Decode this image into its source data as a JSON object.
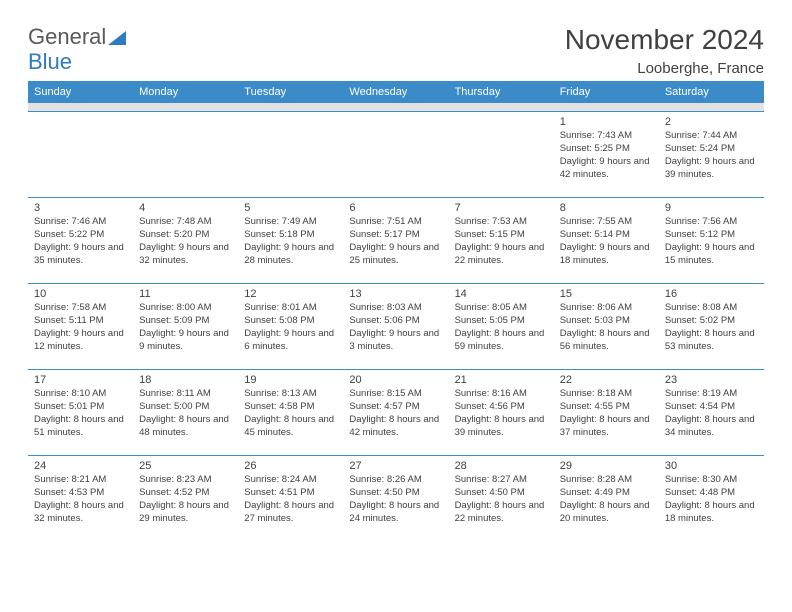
{
  "brand": {
    "part1": "General",
    "part2": "Blue"
  },
  "title": "November 2024",
  "location": "Looberghe, France",
  "colors": {
    "header_bg": "#3b8bc9",
    "header_fg": "#ffffff",
    "spacer_bg": "#e2e2e2",
    "text": "#404040",
    "brand_gray": "#595959",
    "brand_blue": "#2f7bbf"
  },
  "weekdays": [
    "Sunday",
    "Monday",
    "Tuesday",
    "Wednesday",
    "Thursday",
    "Friday",
    "Saturday"
  ],
  "weeks": [
    [
      null,
      null,
      null,
      null,
      null,
      {
        "n": "1",
        "sr": "7:43 AM",
        "ss": "5:25 PM",
        "dl": "9 hours and 42 minutes."
      },
      {
        "n": "2",
        "sr": "7:44 AM",
        "ss": "5:24 PM",
        "dl": "9 hours and 39 minutes."
      }
    ],
    [
      {
        "n": "3",
        "sr": "7:46 AM",
        "ss": "5:22 PM",
        "dl": "9 hours and 35 minutes."
      },
      {
        "n": "4",
        "sr": "7:48 AM",
        "ss": "5:20 PM",
        "dl": "9 hours and 32 minutes."
      },
      {
        "n": "5",
        "sr": "7:49 AM",
        "ss": "5:18 PM",
        "dl": "9 hours and 28 minutes."
      },
      {
        "n": "6",
        "sr": "7:51 AM",
        "ss": "5:17 PM",
        "dl": "9 hours and 25 minutes."
      },
      {
        "n": "7",
        "sr": "7:53 AM",
        "ss": "5:15 PM",
        "dl": "9 hours and 22 minutes."
      },
      {
        "n": "8",
        "sr": "7:55 AM",
        "ss": "5:14 PM",
        "dl": "9 hours and 18 minutes."
      },
      {
        "n": "9",
        "sr": "7:56 AM",
        "ss": "5:12 PM",
        "dl": "9 hours and 15 minutes."
      }
    ],
    [
      {
        "n": "10",
        "sr": "7:58 AM",
        "ss": "5:11 PM",
        "dl": "9 hours and 12 minutes."
      },
      {
        "n": "11",
        "sr": "8:00 AM",
        "ss": "5:09 PM",
        "dl": "9 hours and 9 minutes."
      },
      {
        "n": "12",
        "sr": "8:01 AM",
        "ss": "5:08 PM",
        "dl": "9 hours and 6 minutes."
      },
      {
        "n": "13",
        "sr": "8:03 AM",
        "ss": "5:06 PM",
        "dl": "9 hours and 3 minutes."
      },
      {
        "n": "14",
        "sr": "8:05 AM",
        "ss": "5:05 PM",
        "dl": "8 hours and 59 minutes."
      },
      {
        "n": "15",
        "sr": "8:06 AM",
        "ss": "5:03 PM",
        "dl": "8 hours and 56 minutes."
      },
      {
        "n": "16",
        "sr": "8:08 AM",
        "ss": "5:02 PM",
        "dl": "8 hours and 53 minutes."
      }
    ],
    [
      {
        "n": "17",
        "sr": "8:10 AM",
        "ss": "5:01 PM",
        "dl": "8 hours and 51 minutes."
      },
      {
        "n": "18",
        "sr": "8:11 AM",
        "ss": "5:00 PM",
        "dl": "8 hours and 48 minutes."
      },
      {
        "n": "19",
        "sr": "8:13 AM",
        "ss": "4:58 PM",
        "dl": "8 hours and 45 minutes."
      },
      {
        "n": "20",
        "sr": "8:15 AM",
        "ss": "4:57 PM",
        "dl": "8 hours and 42 minutes."
      },
      {
        "n": "21",
        "sr": "8:16 AM",
        "ss": "4:56 PM",
        "dl": "8 hours and 39 minutes."
      },
      {
        "n": "22",
        "sr": "8:18 AM",
        "ss": "4:55 PM",
        "dl": "8 hours and 37 minutes."
      },
      {
        "n": "23",
        "sr": "8:19 AM",
        "ss": "4:54 PM",
        "dl": "8 hours and 34 minutes."
      }
    ],
    [
      {
        "n": "24",
        "sr": "8:21 AM",
        "ss": "4:53 PM",
        "dl": "8 hours and 32 minutes."
      },
      {
        "n": "25",
        "sr": "8:23 AM",
        "ss": "4:52 PM",
        "dl": "8 hours and 29 minutes."
      },
      {
        "n": "26",
        "sr": "8:24 AM",
        "ss": "4:51 PM",
        "dl": "8 hours and 27 minutes."
      },
      {
        "n": "27",
        "sr": "8:26 AM",
        "ss": "4:50 PM",
        "dl": "8 hours and 24 minutes."
      },
      {
        "n": "28",
        "sr": "8:27 AM",
        "ss": "4:50 PM",
        "dl": "8 hours and 22 minutes."
      },
      {
        "n": "29",
        "sr": "8:28 AM",
        "ss": "4:49 PM",
        "dl": "8 hours and 20 minutes."
      },
      {
        "n": "30",
        "sr": "8:30 AM",
        "ss": "4:48 PM",
        "dl": "8 hours and 18 minutes."
      }
    ]
  ],
  "labels": {
    "sunrise": "Sunrise:",
    "sunset": "Sunset:",
    "daylight": "Daylight:"
  }
}
